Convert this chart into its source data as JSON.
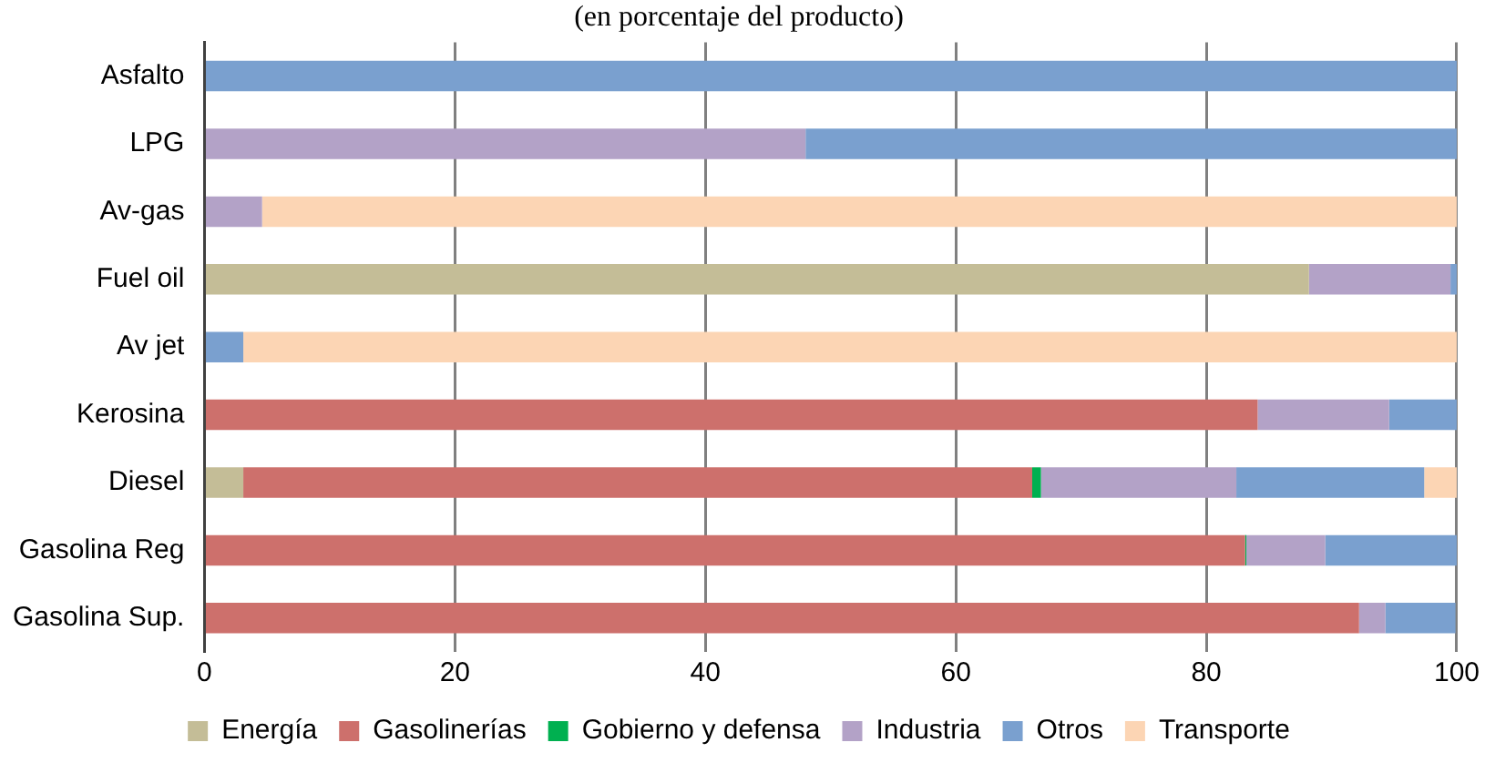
{
  "chart_data": {
    "type": "bar",
    "title": "(en porcentaje del producto)",
    "orientation": "horizontal",
    "stacked": true,
    "categories": [
      "Asfalto",
      "LPG",
      "Av-gas",
      "Fuel oil",
      "Av jet",
      "Kerosina",
      "Diesel",
      "Gasolina Reg",
      "Gasolina Sup."
    ],
    "series": [
      {
        "name": "Energía",
        "color": "#c4bd97",
        "values": [
          0,
          0,
          0,
          88.2,
          0,
          0,
          3.1,
          0,
          0
        ]
      },
      {
        "name": "Gasolinerías",
        "color": "#cd706c",
        "values": [
          0,
          0,
          0,
          0,
          0,
          84.1,
          63,
          83.1,
          92.2
        ]
      },
      {
        "name": "Gobierno y defensa",
        "color": "#00b050",
        "values": [
          0,
          0,
          0,
          0,
          0,
          0,
          0.7,
          0.1,
          0
        ]
      },
      {
        "name": "Industria",
        "color": "#b3a2c7",
        "values": [
          0,
          48,
          4.6,
          11.3,
          0,
          10.5,
          15.6,
          6.3,
          2.1
        ]
      },
      {
        "name": "Otros",
        "color": "#7aa0cf",
        "values": [
          100,
          52,
          0,
          0.5,
          3.1,
          5.4,
          15,
          10.5,
          5.6
        ]
      },
      {
        "name": "Transporte",
        "color": "#fcd5b4",
        "values": [
          0,
          0,
          95.4,
          0,
          96.9,
          0,
          2.6,
          0,
          null
        ]
      }
    ],
    "xlim": [
      0,
      100
    ],
    "xticks": [
      0,
      20,
      40,
      60,
      80,
      100
    ],
    "grid": "x",
    "legend": "bottom"
  }
}
